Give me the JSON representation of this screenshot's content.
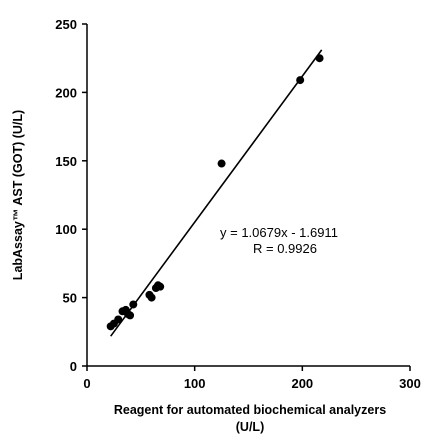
{
  "chart_data": {
    "type": "scatter",
    "xlabel_line1": "Reagent for automated biochemical analyzers",
    "xlabel_line2": "(U/L)",
    "ylabel": "LabAssay™ AST (GOT) (U/L)",
    "xlim": [
      0,
      300
    ],
    "ylim": [
      0,
      250
    ],
    "xticks": [
      0,
      100,
      200,
      300
    ],
    "yticks": [
      0,
      50,
      100,
      150,
      200,
      250
    ],
    "grid": false,
    "series": [
      {
        "points": [
          {
            "x": 22,
            "y": 29
          },
          {
            "x": 25,
            "y": 31
          },
          {
            "x": 29,
            "y": 34
          },
          {
            "x": 33,
            "y": 40
          },
          {
            "x": 36,
            "y": 41
          },
          {
            "x": 38,
            "y": 38
          },
          {
            "x": 40,
            "y": 37
          },
          {
            "x": 43,
            "y": 45
          },
          {
            "x": 58,
            "y": 52
          },
          {
            "x": 60,
            "y": 50
          },
          {
            "x": 64,
            "y": 57
          },
          {
            "x": 66,
            "y": 59
          },
          {
            "x": 68,
            "y": 58
          },
          {
            "x": 125,
            "y": 148
          },
          {
            "x": 198,
            "y": 209
          },
          {
            "x": 216,
            "y": 225
          }
        ]
      }
    ],
    "trendline": {
      "slope": 1.0679,
      "intercept": -1.6911,
      "x_range": [
        22,
        218
      ]
    },
    "annotations": {
      "equation": "y = 1.0679x - 1.6911",
      "r_value": "R = 0.9926"
    }
  }
}
